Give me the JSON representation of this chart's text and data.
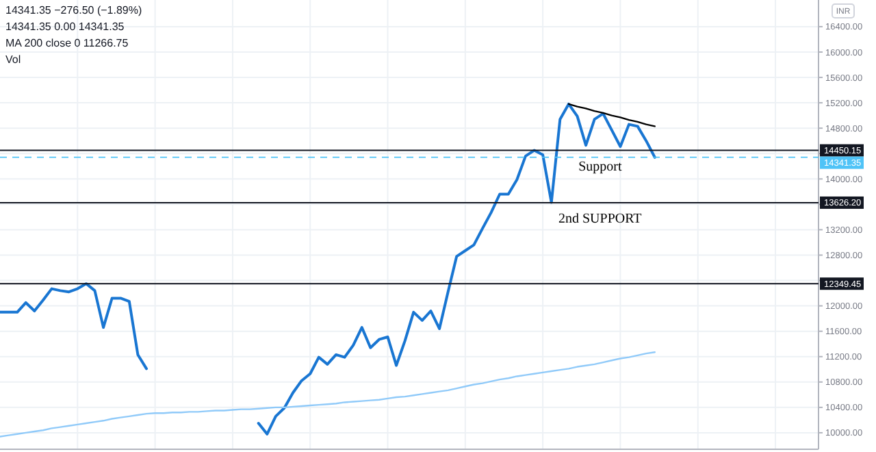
{
  "chart_data": {
    "type": "line",
    "ylabel": "INR",
    "ylim": [
      9740,
      16820
    ],
    "categories": [
      null,
      null,
      null,
      null,
      null,
      null,
      null,
      null,
      null,
      null,
      null,
      null,
      null,
      null,
      null,
      null,
      null,
      null,
      null,
      null,
      null,
      null,
      null,
      null,
      null,
      null,
      null,
      null,
      null,
      null,
      null,
      null,
      null,
      null,
      null,
      null,
      null,
      null,
      null,
      null,
      null,
      null,
      null,
      null,
      null,
      null,
      null,
      null,
      null,
      null,
      null,
      null,
      null,
      null,
      null,
      null,
      null,
      null,
      null,
      null,
      null,
      null,
      null,
      null,
      null,
      null,
      null,
      null,
      null,
      null,
      null,
      null,
      null,
      null,
      null,
      null,
      null
    ],
    "yticks": [
      {
        "value": 10000,
        "label": "10000.00"
      },
      {
        "value": 10400,
        "label": "10400.00"
      },
      {
        "value": 10800,
        "label": "10800.00"
      },
      {
        "value": 11200,
        "label": "11200.00"
      },
      {
        "value": 11600,
        "label": "11600.00"
      },
      {
        "value": 12000,
        "label": "12000.00"
      },
      {
        "value": 12400,
        "label": null
      },
      {
        "value": 12800,
        "label": "12800.00"
      },
      {
        "value": 13200,
        "label": "13200.00"
      },
      {
        "value": 13600,
        "label": null
      },
      {
        "value": 14000,
        "label": "14000.00"
      },
      {
        "value": 14400,
        "label": null
      },
      {
        "value": 14800,
        "label": "14800.00"
      },
      {
        "value": 15200,
        "label": "15200.00"
      },
      {
        "value": 15600,
        "label": "15600.00"
      },
      {
        "value": 16000,
        "label": "16000.00"
      },
      {
        "value": 16400,
        "label": "16400.00"
      }
    ],
    "tick_labels": "y",
    "grid": true,
    "marker": "none",
    "line_style": "solid",
    "series": [
      {
        "color": "#1976d2",
        "values": [
          11900,
          11900,
          11900,
          12050,
          11920,
          12090,
          12270,
          12240,
          12220,
          12270,
          12350,
          12240,
          11660,
          12120,
          12120,
          12070,
          11230,
          11010,
          null,
          null,
          null,
          null,
          null,
          null,
          null,
          null,
          null,
          null,
          null,
          null,
          10150,
          9980,
          10260,
          10390,
          10630,
          10820,
          10930,
          11190,
          11080,
          11230,
          11190,
          11380,
          11660,
          11340,
          11470,
          11510,
          11060,
          11450,
          11900,
          11770,
          11920,
          11640,
          12220,
          12780,
          12870,
          12960,
          13220,
          13470,
          13760,
          13760,
          13990,
          14360,
          14450,
          14380,
          13630,
          14940,
          15180,
          14990,
          14530,
          14940,
          15030,
          14770,
          14510,
          14860,
          14830,
          14600,
          14340
        ]
      },
      {
        "color": "#90caf9",
        "values": [
          9940,
          9960,
          9980,
          10000,
          10020,
          10040,
          10070,
          10090,
          10110,
          10130,
          10150,
          10170,
          10190,
          10220,
          10240,
          10260,
          10280,
          10300,
          10310,
          10310,
          10320,
          10320,
          10330,
          10330,
          10340,
          10350,
          10350,
          10360,
          10370,
          10370,
          10380,
          10390,
          10400,
          10400,
          10410,
          10420,
          10430,
          10440,
          10450,
          10460,
          10480,
          10490,
          10500,
          10510,
          10520,
          10540,
          10560,
          10570,
          10590,
          10610,
          10630,
          10650,
          10670,
          10700,
          10730,
          10760,
          10780,
          10810,
          10840,
          10860,
          10890,
          10910,
          10930,
          10950,
          10970,
          10990,
          11010,
          11040,
          11060,
          11080,
          11110,
          11140,
          11170,
          11190,
          11220,
          11250,
          11270
        ]
      },
      {
        "type": "line",
        "color": "#000000",
        "values": [
          null,
          null,
          null,
          null,
          null,
          null,
          null,
          null,
          null,
          null,
          null,
          null,
          null,
          null,
          null,
          null,
          null,
          null,
          null,
          null,
          null,
          null,
          null,
          null,
          null,
          null,
          null,
          null,
          null,
          null,
          null,
          null,
          null,
          null,
          null,
          null,
          null,
          null,
          null,
          null,
          null,
          null,
          null,
          null,
          null,
          null,
          null,
          null,
          null,
          null,
          null,
          null,
          null,
          null,
          null,
          null,
          null,
          null,
          null,
          null,
          null,
          null,
          null,
          null,
          null,
          null,
          15180,
          15140,
          15110,
          15070,
          15040,
          15000,
          14970,
          14930,
          14900,
          14860,
          14830
        ]
      }
    ],
    "ref_lines": [
      {
        "axis": "y",
        "value": 14450.15,
        "label": "14450.15",
        "color": "#131722"
      },
      {
        "axis": "y",
        "value": 14341.35,
        "label": "14341.35",
        "color": "#4fc3f7",
        "line_style": "dashed"
      },
      {
        "axis": "y",
        "value": 13626.2,
        "label": "13626.20",
        "color": "#131722"
      },
      {
        "axis": "y",
        "value": 12349.45,
        "label": "12349.45",
        "color": "#131722"
      }
    ],
    "annotations": [
      "14341.35 −276.50 (−1.89%)",
      "14341.35  0.00  14341.35",
      "MA 200 close 0  11266.75",
      "Vol",
      {
        "text": "Support",
        "y": 14450.15
      },
      {
        "text": "2nd SUPPORT",
        "y": 13626.2
      }
    ]
  }
}
